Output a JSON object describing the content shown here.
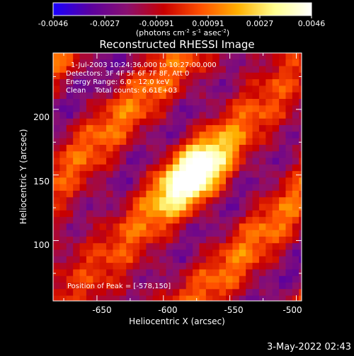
{
  "colorbar": {
    "tick_labels": [
      "-0.0046",
      "-0.0027",
      "-0.00091",
      "0.00091",
      "0.0027",
      "0.0046"
    ],
    "units_label": "(photons cm",
    "units_exp1": "-2",
    "units_mid1": " s",
    "units_exp2": "-1",
    "units_mid2": " asec",
    "units_exp3": "-2",
    "units_end": ")",
    "range": [
      -0.0046,
      0.0046
    ],
    "colormap_stops": [
      "#1a00ff",
      "#5a00a0",
      "#8a1070",
      "#c80000",
      "#ff5000",
      "#ffb000",
      "#ffff90",
      "#ffffff"
    ]
  },
  "chart_data": {
    "type": "heatmap",
    "title": "Reconstructed RHESSI Image",
    "xlabel": "Heliocentric X (arcsec)",
    "ylabel": "Heliocentric Y (arcsec)",
    "xlim": [
      -683,
      -496
    ],
    "ylim": [
      54,
      243
    ],
    "x_ticks": [
      -650,
      -600,
      -550,
      -500
    ],
    "y_ticks": [
      100,
      150,
      200
    ],
    "x_tick_labels": [
      "-650",
      "-600",
      "-550",
      "-500"
    ],
    "y_tick_labels": [
      "100",
      "150",
      "200"
    ],
    "annotations": [
      "1-Jul-2003 10:24:36.000 to 10:27:00.000",
      "Detectors: 3F 4F 5F 6F 7F 8F, Att 0",
      "Energy Range: 6.0 - 12.0 keV",
      "Clean    Total counts: 6.61E+03"
    ],
    "peak_label": "Position of Peak = [-578,150]",
    "peak": [
      -578,
      150
    ]
  },
  "footer": {
    "timestamp": "3-May-2022 02:43"
  }
}
